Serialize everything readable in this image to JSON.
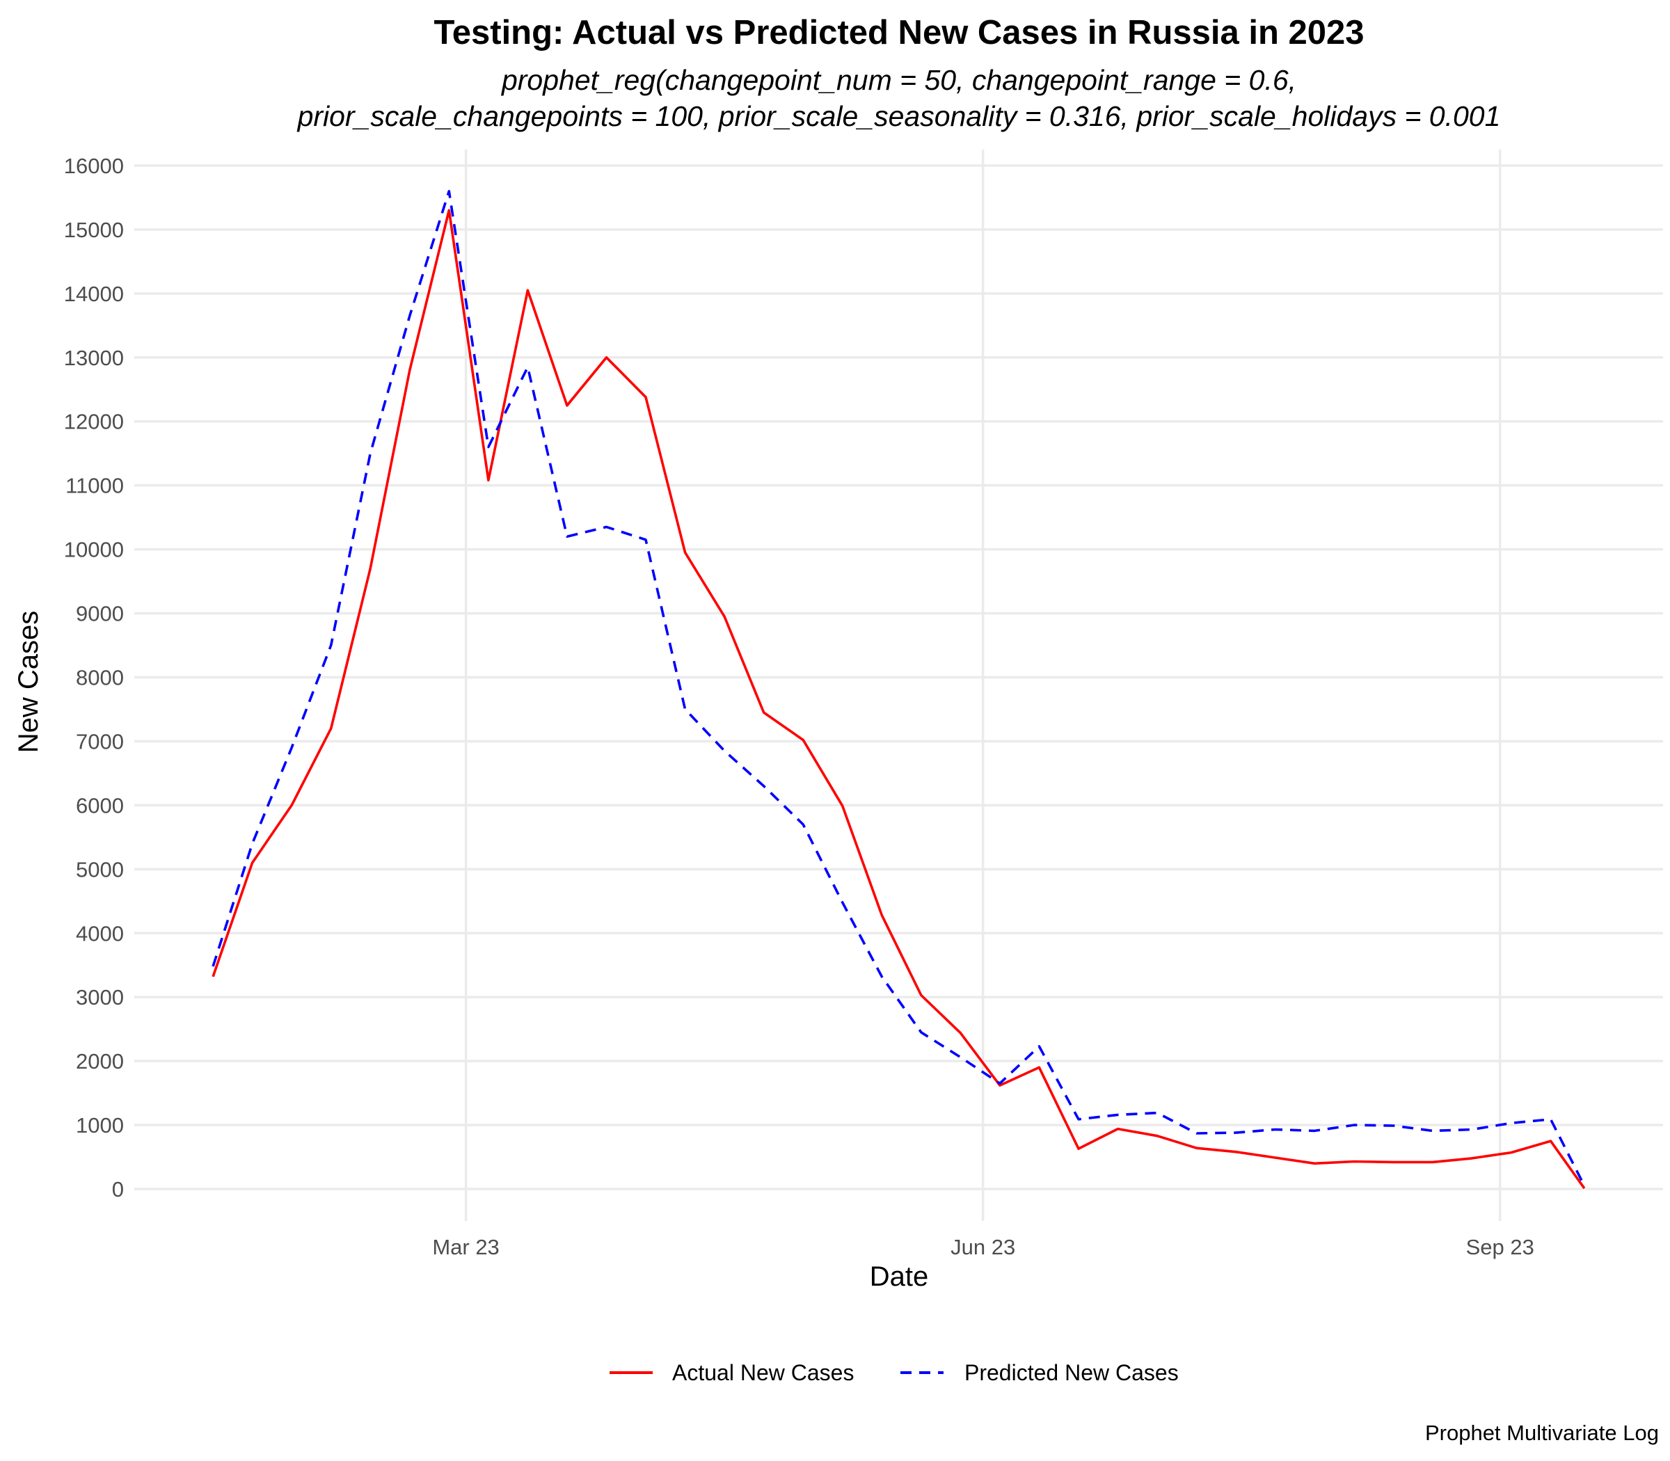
{
  "colors": {
    "actual": "#ff0000",
    "predicted": "#0000ff",
    "grid": "#ebebeb"
  },
  "chart_data": {
    "type": "line",
    "title": "Testing: Actual vs Predicted New Cases in Russia in 2023",
    "subtitle_line1": "prophet_reg(changepoint_num = 50, changepoint_range = 0.6,",
    "subtitle_line2": "prior_scale_changepoints = 100, prior_scale_seasonality = 0.316, prior_scale_holidays = 0.001",
    "xlabel": "Date",
    "ylabel": "New Cases",
    "caption": "Prophet Multivariate Log",
    "ylim": [
      -500,
      16250
    ],
    "xlim": [
      "2023-01-01",
      "2023-09-30"
    ],
    "y_ticks": [
      0,
      1000,
      2000,
      3000,
      4000,
      5000,
      6000,
      7000,
      8000,
      9000,
      10000,
      11000,
      12000,
      13000,
      14000,
      15000,
      16000
    ],
    "x_ticks": [
      {
        "date": "2023-03-01",
        "label": "Mar 23"
      },
      {
        "date": "2023-06-01",
        "label": "Jun 23"
      },
      {
        "date": "2023-09-01",
        "label": "Sep 23"
      }
    ],
    "grid": true,
    "legend_position": "bottom",
    "dates": [
      "2023-01-15",
      "2023-01-22",
      "2023-01-29",
      "2023-02-05",
      "2023-02-12",
      "2023-02-19",
      "2023-02-26",
      "2023-03-05",
      "2023-03-12",
      "2023-03-19",
      "2023-03-26",
      "2023-04-02",
      "2023-04-09",
      "2023-04-16",
      "2023-04-23",
      "2023-04-30",
      "2023-05-07",
      "2023-05-14",
      "2023-05-21",
      "2023-05-28",
      "2023-06-04",
      "2023-06-11",
      "2023-06-18",
      "2023-06-25",
      "2023-07-02",
      "2023-07-09",
      "2023-07-16",
      "2023-07-23",
      "2023-07-30",
      "2023-08-06",
      "2023-08-13",
      "2023-08-20",
      "2023-08-27",
      "2023-09-03",
      "2023-09-10"
    ],
    "series": [
      {
        "name": "Actual New Cases",
        "color": "#ff0000",
        "dash": "solid",
        "values": [
          3320,
          5100,
          6000,
          7200,
          9700,
          12800,
          15300,
          11080,
          14050,
          12250,
          13000,
          12380,
          9950,
          8950,
          7450,
          7020,
          5990,
          4280,
          3030,
          2440,
          1620,
          1900,
          630,
          940,
          830,
          640,
          580,
          490,
          400,
          430,
          420,
          420,
          480,
          570,
          750
        ]
      },
      {
        "name": "Predicted New Cases",
        "color": "#0000ff",
        "dash": "dashed",
        "values": [
          3480,
          5400,
          6900,
          8500,
          11500,
          13650,
          15600,
          11600,
          12850,
          10200,
          10350,
          10150,
          7500,
          6850,
          6300,
          5700,
          4480,
          3320,
          2450,
          2060,
          1650,
          2230,
          1090,
          1160,
          1190,
          870,
          880,
          930,
          910,
          1000,
          990,
          910,
          930,
          1030,
          1090
        ]
      }
    ],
    "final_point": {
      "date": "2023-09-16",
      "actual": 10,
      "predicted": 50
    }
  }
}
